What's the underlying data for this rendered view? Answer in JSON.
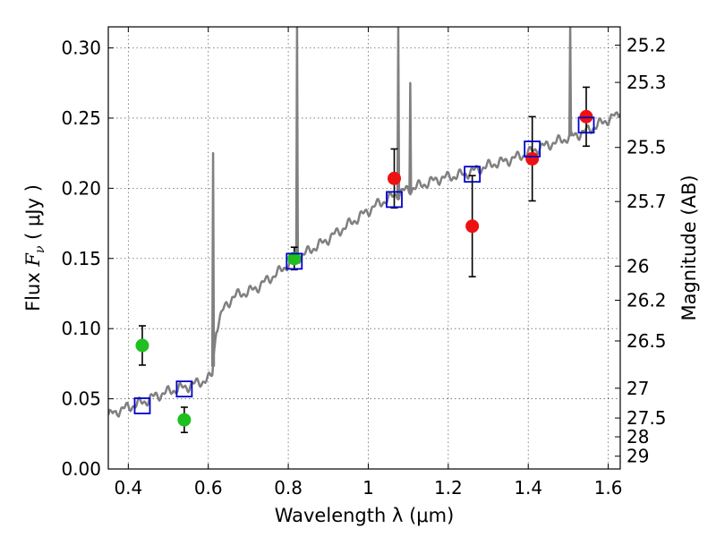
{
  "chart_data": {
    "type": "scatter",
    "xlabel": "Wavelength  λ (μm)",
    "ylabel": "Flux  F_ν  ( μJy )",
    "ylabel_parts": {
      "pre": "Flux  ",
      "var": "F",
      "sub": "ν",
      "post": "  ( μJy )"
    },
    "y2label": "Magnitude (AB)",
    "xlim": [
      0.35,
      1.63
    ],
    "ylim": [
      0.0,
      0.315
    ],
    "xticks": [
      0.4,
      0.6,
      0.8,
      1.0,
      1.2,
      1.4,
      1.6
    ],
    "xtick_labels": [
      "0.4",
      "0.6",
      "0.8",
      "1",
      "1.2",
      "1.4",
      "1.6"
    ],
    "yticks": [
      0.0,
      0.05,
      0.1,
      0.15,
      0.2,
      0.25,
      0.3
    ],
    "ytick_labels": [
      "0.00",
      "0.05",
      "0.10",
      "0.15",
      "0.20",
      "0.25",
      "0.30"
    ],
    "magnitude_ticks": [
      "25.2",
      "25.3",
      "25.5",
      "25.7",
      "26",
      "26.2",
      "26.5",
      "27",
      "27.5",
      "28",
      "29"
    ],
    "grid": true,
    "colors": {
      "spectrum": "#808080",
      "green": "#1fbf1f",
      "red": "#ee1111",
      "model": "#0000cc",
      "error": "#000000"
    },
    "series": [
      {
        "kind": "model_spectrum_line",
        "x": [
          0.35,
          0.38,
          0.4,
          0.42,
          0.44,
          0.46,
          0.48,
          0.5,
          0.52,
          0.54,
          0.56,
          0.58,
          0.6,
          0.605,
          0.61,
          0.615,
          0.62,
          0.64,
          0.66,
          0.68,
          0.7,
          0.72,
          0.74,
          0.76,
          0.78,
          0.8,
          0.82,
          0.84,
          0.86,
          0.88,
          0.9,
          0.92,
          0.94,
          0.96,
          0.98,
          1.0,
          1.02,
          1.04,
          1.06,
          1.08,
          1.1,
          1.12,
          1.14,
          1.16,
          1.18,
          1.2,
          1.22,
          1.24,
          1.26,
          1.28,
          1.3,
          1.32,
          1.34,
          1.36,
          1.38,
          1.4,
          1.42,
          1.44,
          1.46,
          1.48,
          1.5,
          1.52,
          1.54,
          1.56,
          1.58,
          1.6,
          1.63
        ],
        "y": [
          0.038,
          0.042,
          0.044,
          0.046,
          0.048,
          0.051,
          0.053,
          0.055,
          0.057,
          0.058,
          0.06,
          0.062,
          0.064,
          0.065,
          0.068,
          0.085,
          0.1,
          0.115,
          0.122,
          0.125,
          0.126,
          0.129,
          0.133,
          0.137,
          0.141,
          0.146,
          0.15,
          0.153,
          0.157,
          0.16,
          0.164,
          0.168,
          0.172,
          0.176,
          0.18,
          0.184,
          0.188,
          0.191,
          0.194,
          0.197,
          0.199,
          0.201,
          0.203,
          0.205,
          0.207,
          0.208,
          0.209,
          0.21,
          0.212,
          0.214,
          0.216,
          0.218,
          0.219,
          0.221,
          0.223,
          0.225,
          0.228,
          0.23,
          0.232,
          0.234,
          0.236,
          0.238,
          0.24,
          0.243,
          0.246,
          0.249,
          0.253
        ],
        "emission_spikes": [
          {
            "x": 0.612,
            "peak": 0.225
          },
          {
            "x": 0.822,
            "peak": 0.315
          },
          {
            "x": 1.075,
            "peak": 0.315
          },
          {
            "x": 1.105,
            "peak": 0.275
          },
          {
            "x": 1.505,
            "peak": 0.315
          }
        ]
      },
      {
        "kind": "observed_points_green",
        "x": [
          0.435,
          0.54,
          0.815
        ],
        "y": [
          0.088,
          0.035,
          0.15
        ],
        "err": [
          0.014,
          0.009,
          0.008
        ]
      },
      {
        "kind": "observed_points_red",
        "x": [
          1.065,
          1.26,
          1.41,
          1.545
        ],
        "y": [
          0.207,
          0.173,
          0.221,
          0.251
        ],
        "err": [
          0.021,
          0.036,
          0.03,
          0.021
        ]
      },
      {
        "kind": "model_photometry_squares",
        "x": [
          0.435,
          0.54,
          0.815,
          1.065,
          1.26,
          1.41,
          1.545
        ],
        "y": [
          0.045,
          0.057,
          0.148,
          0.192,
          0.21,
          0.228,
          0.245
        ]
      }
    ]
  }
}
